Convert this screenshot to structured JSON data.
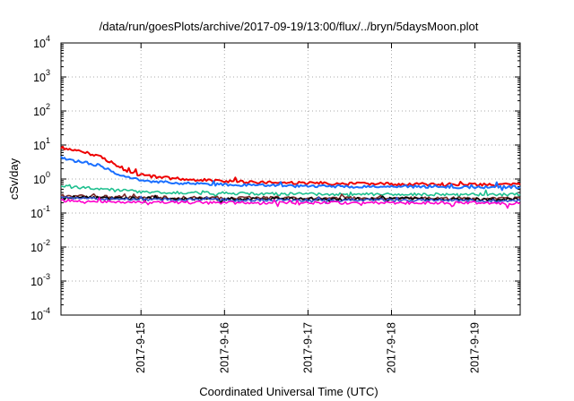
{
  "chart_data": {
    "type": "line",
    "title": "/data/run/goesPlots/archive/2017-09-19/13:00/flux/../bryn/5daysMoon.plot",
    "xlabel": "Coordinated Universal Time (UTC)",
    "ylabel": "cSv/day",
    "scale_y": "log",
    "xlim": [
      "2017-09-14T01:00",
      "2017-09-19T13:00"
    ],
    "ylim": [
      0.0001,
      10000
    ],
    "y_ticks": [
      {
        "base": "10",
        "exp": "-4"
      },
      {
        "base": "10",
        "exp": "-3"
      },
      {
        "base": "10",
        "exp": "-2"
      },
      {
        "base": "10",
        "exp": "-1"
      },
      {
        "base": "10",
        "exp": "0"
      },
      {
        "base": "10",
        "exp": "1"
      },
      {
        "base": "10",
        "exp": "2"
      },
      {
        "base": "10",
        "exp": "3"
      },
      {
        "base": "10",
        "exp": "4"
      }
    ],
    "x_ticks": [
      "2017-9-15",
      "2017-9-16",
      "2017-9-17",
      "2017-9-18",
      "2017-9-19"
    ],
    "grid": true,
    "series": [
      {
        "color": "#ee0000",
        "x": [
          "2017-09-14T01:00",
          "2017-09-14T04:00",
          "2017-09-14T08:00",
          "2017-09-14T12:00",
          "2017-09-14T16:00",
          "2017-09-14T20:00",
          "2017-09-15T00:00",
          "2017-09-15T06:00",
          "2017-09-15T12:00",
          "2017-09-16T00:00",
          "2017-09-16T12:00",
          "2017-09-17T00:00",
          "2017-09-17T12:00",
          "2017-09-18T00:00",
          "2017-09-18T12:00",
          "2017-09-19T00:00",
          "2017-09-19T13:00"
        ],
        "values": [
          8.5,
          7.0,
          6.0,
          4.8,
          2.8,
          1.7,
          1.3,
          1.1,
          1.0,
          0.85,
          0.8,
          0.75,
          0.72,
          0.72,
          0.7,
          0.7,
          0.68
        ]
      },
      {
        "color": "#1a6fff",
        "x": [
          "2017-09-14T01:00",
          "2017-09-14T04:00",
          "2017-09-14T08:00",
          "2017-09-14T12:00",
          "2017-09-14T16:00",
          "2017-09-14T20:00",
          "2017-09-15T00:00",
          "2017-09-15T06:00",
          "2017-09-15T12:00",
          "2017-09-16T00:00",
          "2017-09-16T12:00",
          "2017-09-17T00:00",
          "2017-09-17T12:00",
          "2017-09-18T00:00",
          "2017-09-18T12:00",
          "2017-09-19T00:00",
          "2017-09-19T13:00"
        ],
        "values": [
          4.3,
          3.5,
          3.0,
          2.5,
          1.6,
          1.1,
          0.9,
          0.8,
          0.75,
          0.68,
          0.65,
          0.62,
          0.6,
          0.6,
          0.6,
          0.58,
          0.58
        ]
      },
      {
        "color": "#1fc08f",
        "x": [
          "2017-09-14T01:00",
          "2017-09-14T08:00",
          "2017-09-14T16:00",
          "2017-09-15T00:00",
          "2017-09-15T12:00",
          "2017-09-16T00:00",
          "2017-09-17T00:00",
          "2017-09-18T00:00",
          "2017-09-19T00:00",
          "2017-09-19T13:00"
        ],
        "values": [
          0.6,
          0.55,
          0.48,
          0.42,
          0.4,
          0.38,
          0.36,
          0.36,
          0.35,
          0.35
        ]
      },
      {
        "color": "#7a2a2a",
        "x": [
          "2017-09-14T01:00",
          "2017-09-14T12:00",
          "2017-09-15T00:00",
          "2017-09-16T00:00",
          "2017-09-17T00:00",
          "2017-09-18T00:00",
          "2017-09-19T00:00",
          "2017-09-19T13:00"
        ],
        "values": [
          0.32,
          0.3,
          0.29,
          0.28,
          0.28,
          0.28,
          0.27,
          0.27
        ]
      },
      {
        "color": "#000000",
        "x": [
          "2017-09-14T01:00",
          "2017-09-14T12:00",
          "2017-09-15T00:00",
          "2017-09-16T00:00",
          "2017-09-17T00:00",
          "2017-09-18T00:00",
          "2017-09-19T00:00",
          "2017-09-19T13:00"
        ],
        "values": [
          0.3,
          0.28,
          0.27,
          0.26,
          0.26,
          0.26,
          0.25,
          0.25
        ]
      },
      {
        "color": "#3355cc",
        "x": [
          "2017-09-14T01:00",
          "2017-09-14T12:00",
          "2017-09-15T00:00",
          "2017-09-16T00:00",
          "2017-09-17T00:00",
          "2017-09-18T00:00",
          "2017-09-19T00:00",
          "2017-09-19T13:00"
        ],
        "values": [
          0.28,
          0.26,
          0.25,
          0.24,
          0.24,
          0.24,
          0.23,
          0.23
        ]
      },
      {
        "color": "#ff00cc",
        "x": [
          "2017-09-14T01:00",
          "2017-09-14T12:00",
          "2017-09-15T00:00",
          "2017-09-16T00:00",
          "2017-09-17T00:00",
          "2017-09-18T00:00",
          "2017-09-19T00:00",
          "2017-09-19T13:00"
        ],
        "values": [
          0.23,
          0.22,
          0.21,
          0.2,
          0.2,
          0.2,
          0.2,
          0.19
        ]
      }
    ]
  }
}
